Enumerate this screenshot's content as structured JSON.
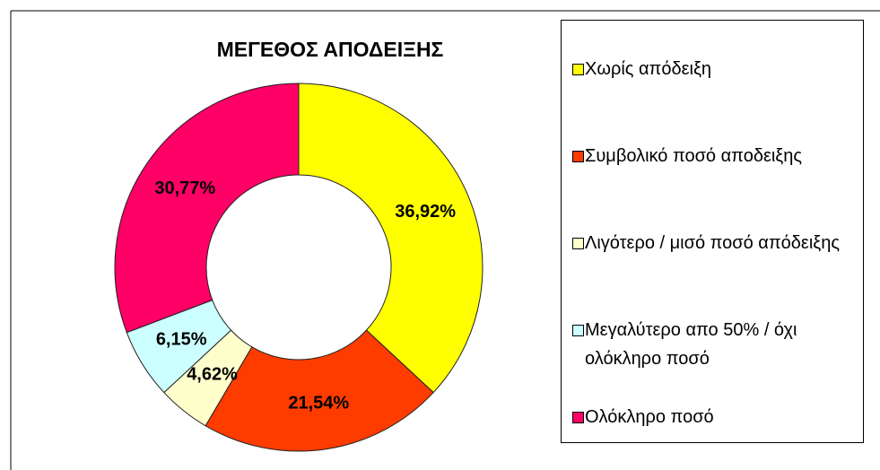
{
  "chart_data": {
    "type": "donut",
    "title": "ΜΕΓΕΘΟΣ ΑΠΟΔΕΙΞΗΣ",
    "categories": [
      "Χωρίς απόδειξη",
      "Συμβολικό ποσό αποδειξης",
      "Λιγότερο / μισό ποσό απόδειξης",
      "Μεγαλύτερο απο 50% / όχι ολόκληρο ποσό",
      "Ολόκληρο ποσό"
    ],
    "values": [
      36.92,
      21.54,
      4.62,
      6.15,
      30.77
    ],
    "value_labels": [
      "36,92%",
      "21,54%",
      "4,62%",
      "6,15%",
      "30,77%"
    ],
    "colors": [
      "#ffff00",
      "#ff3c00",
      "#ffffcc",
      "#ccffff",
      "#ff0066"
    ],
    "legend": "right"
  }
}
